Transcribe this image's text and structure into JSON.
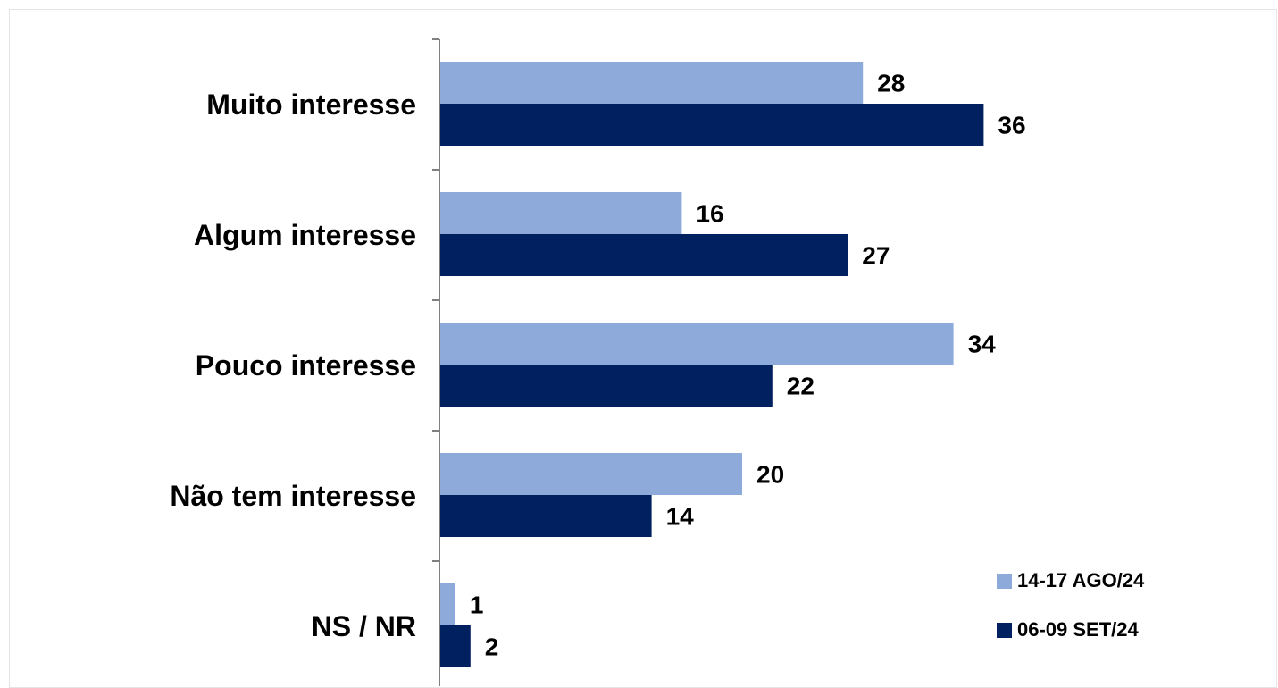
{
  "chart_data": {
    "type": "bar",
    "orientation": "horizontal",
    "categories": [
      "Muito interesse",
      "Algum interesse",
      "Pouco interesse",
      "Não tem interesse",
      "NS / NR"
    ],
    "series": [
      {
        "name": "14-17 AGO/24",
        "values": [
          28,
          16,
          34,
          20,
          1
        ],
        "color": "#8eaadb"
      },
      {
        "name": "06-09 SET/24",
        "values": [
          36,
          27,
          22,
          14,
          2
        ],
        "color": "#002060"
      }
    ],
    "xlim": [
      0,
      40
    ],
    "grid": false,
    "data_labels": true,
    "legend_position": "bottom-right"
  }
}
